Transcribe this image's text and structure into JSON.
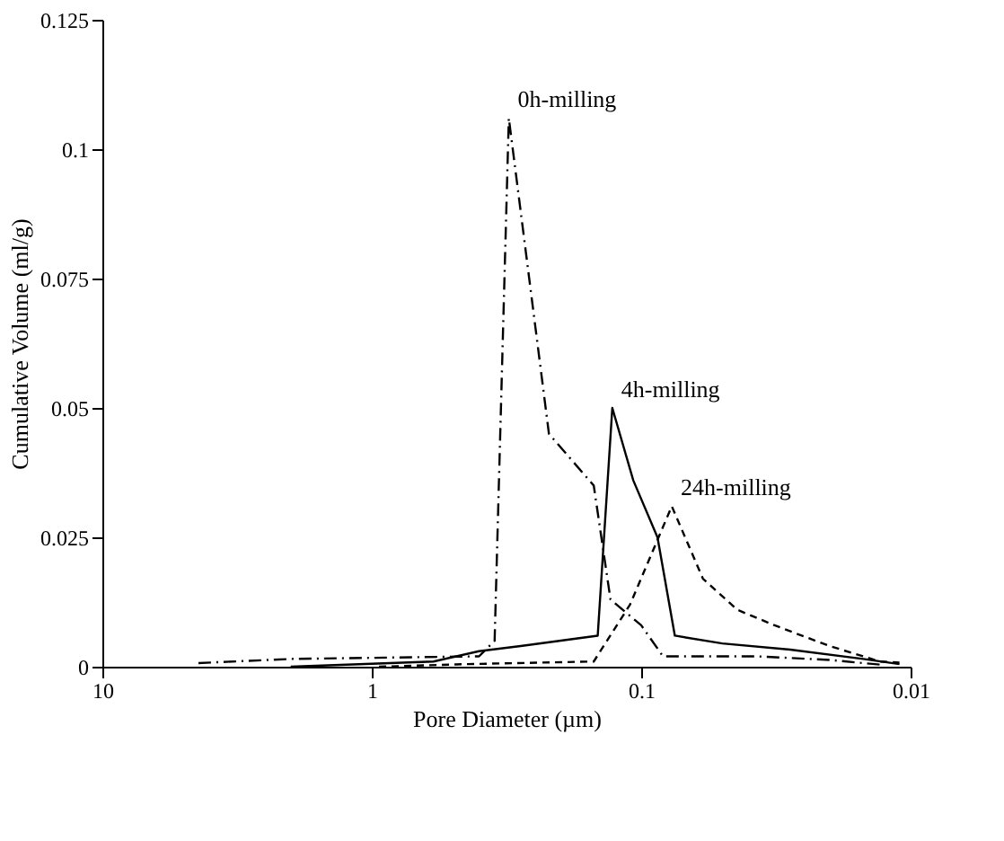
{
  "chart_data": {
    "type": "line",
    "xlabel": "Pore Diameter (µm)",
    "ylabel": "Cumulative Volume (ml/g)",
    "log": "x",
    "xlim": [
      10,
      0.01
    ],
    "xticks": [
      10,
      1,
      0.1,
      0.01
    ],
    "ylim": [
      0,
      0.125
    ],
    "yticks": [
      0,
      0.025,
      0.05,
      0.075,
      0.1,
      0.125
    ],
    "grid": false,
    "marker": "none",
    "series": [
      {
        "name": "0h-milling",
        "color": "#000000",
        "line_style": "dashdot",
        "x": [
          4.4,
          2.0,
          0.4,
          0.35,
          0.31,
          0.22,
          0.15,
          0.13,
          0.1,
          0.083,
          0.037,
          0.02,
          0.013
        ],
        "values": [
          0.0007,
          0.0015,
          0.002,
          0.005,
          0.106,
          0.045,
          0.035,
          0.013,
          0.008,
          0.002,
          0.002,
          0.0013,
          0.0004
        ]
      },
      {
        "name": "4h-milling",
        "color": "#000000",
        "line_style": "solid",
        "x": [
          2.0,
          0.59,
          0.4,
          0.28,
          0.145,
          0.128,
          0.107,
          0.087,
          0.075,
          0.05,
          0.028,
          0.015,
          0.011
        ],
        "values": [
          0,
          0.001,
          0.003,
          0.004,
          0.006,
          0.05,
          0.036,
          0.025,
          0.006,
          0.0045,
          0.0033,
          0.0015,
          0.0005
        ]
      },
      {
        "name": "24h-milling",
        "color": "#000000",
        "line_style": "dashed",
        "x": [
          0.94,
          0.44,
          0.15,
          0.11,
          0.077,
          0.059,
          0.044,
          0.032,
          0.02,
          0.013,
          0.011
        ],
        "values": [
          0,
          0.0005,
          0.001,
          0.012,
          0.031,
          0.017,
          0.011,
          0.008,
          0.004,
          0.001,
          0.0008
        ]
      }
    ]
  }
}
